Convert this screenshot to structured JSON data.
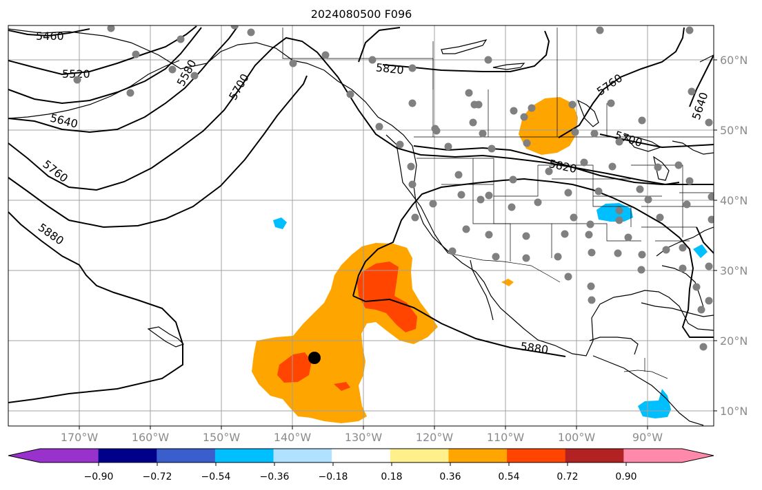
{
  "title": "2024080500 F096",
  "map": {
    "lon_labels": [
      "170°W",
      "160°W",
      "150°W",
      "140°W",
      "130°W",
      "120°W",
      "110°W",
      "100°W",
      "90°W"
    ],
    "lat_labels": [
      "60°N",
      "50°N",
      "40°N",
      "30°N",
      "20°N",
      "10°N"
    ],
    "contour_labels": [
      "5460",
      "5520",
      "5580",
      "5640",
      "5700",
      "5760",
      "5820",
      "5880"
    ]
  },
  "colorbar": {
    "ticks": [
      "−0.90",
      "−0.72",
      "−0.54",
      "−0.36",
      "−0.18",
      "0.18",
      "0.36",
      "0.54",
      "0.72",
      "0.90"
    ],
    "colors": [
      "#9932cc",
      "#00008b",
      "#3a5fcd",
      "#00bfff",
      "#b0e2ff",
      "#ffffff",
      "#fff08c",
      "#ffa500",
      "#ff4500",
      "#b22222",
      "#ff89ab",
      "#ff89ab"
    ]
  },
  "legend_colors": {
    "warm_anomaly": "#ffa500",
    "strong_warm_anomaly": "#ff4500",
    "cold_anomaly": "#00bfff",
    "station": "#808080",
    "marker": "#000000"
  }
}
